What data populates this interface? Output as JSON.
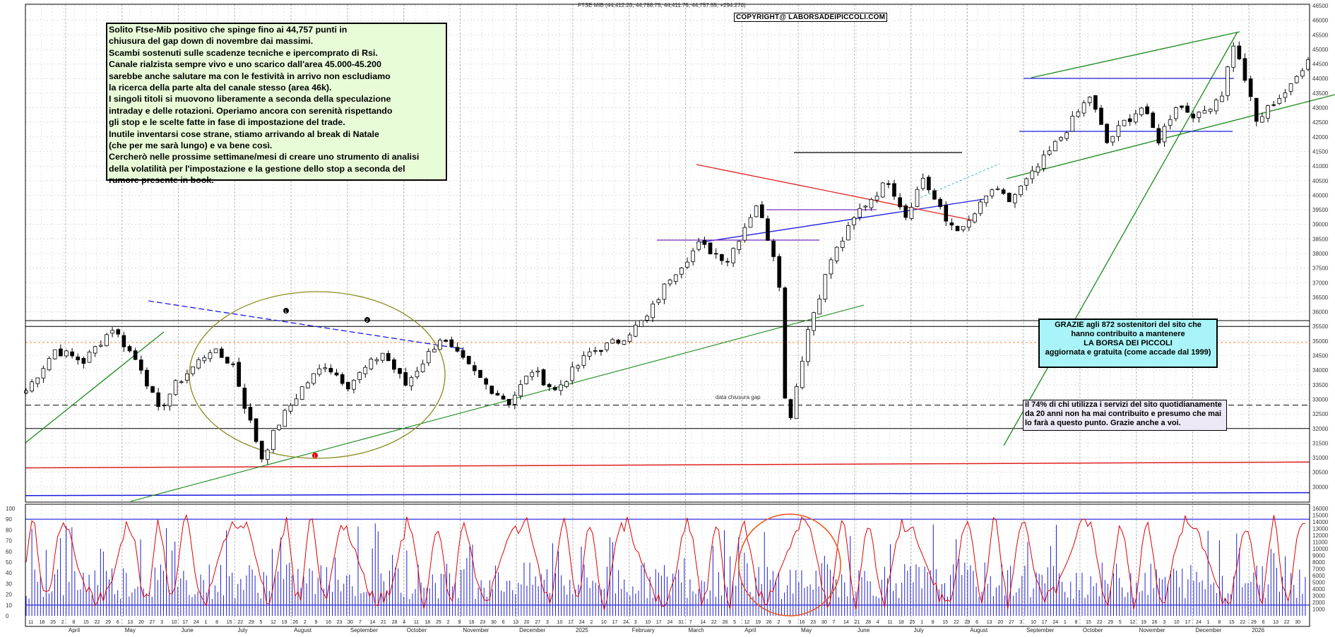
{
  "header": "FTSE MIB (44,412.23, 44,788.75, 44,411.75, 44,757.55, +294.270)",
  "copyright": "COPYRIGHT@ LABORSADEIPICCOLI.COM",
  "commentary": [
    "Solito Ftse-Mib positivo che spinge fino ai 44,757  punti in",
    "chiusura del gap down di novembre dai massimi.",
    "Scambi sostenuti sulle scadenze tecniche e ipercomprato di Rsi.",
    "Canale rialzista sempre vivo e uno scarico dall'area 45.000-45.200",
    "sarebbe anche salutare ma con le festività in arrivo  non escludiamo",
    "la ricerca della parte alta del canale stesso (area 46k).",
    "I singoli titoli si muovono liberamente a seconda della speculazione",
    "intraday e delle rotazioni. Operiamo ancora con serenità rispettando",
    "gli stop e le scelte fatte in fase di impostazione del trade.",
    "Inutile inventarsi cose strane, stiamo  arrivando al break di Natale",
    "(che per me sarà lungo) e va bene così.",
    "Cercherò nelle prossime settimane/mesi di creare uno strumento di analisi",
    "della volatilità per l'impostazione e la gestione dello stop a seconda del",
    "rumore presente in book."
  ],
  "thanks": [
    "GRAZIE  agli 872  sostenitori del sito che",
    "hanno contribuito a mantenere",
    "LA BORSA DEI PICCOLI",
    "aggiornata e gratuita (come accade dal 1999)"
  ],
  "stats": [
    "il 74%  di chi utilizza i servizi del sito quotidianamente",
    "da 20 anni non ha mai contribuito e presumo che mai",
    "lo farà a questo punto. Grazie anche a voi."
  ],
  "gap_label": "data chiusura gap",
  "colors": {
    "up": "#ffffff",
    "down": "#000000",
    "rsi": "#e00000",
    "volume": "#2020d0",
    "support": "#1a8a1a",
    "resistance": "#1a1ae0"
  },
  "chart_data": [
    {
      "type": "candlestick",
      "title": "FTSE MIB (44,412.23, 44,788.75, 44,411.75, 44,757.55, +294.270)",
      "y_axis_side": "right",
      "ylim": [
        29500,
        46500
      ],
      "yticks": [
        30000,
        30500,
        31000,
        31500,
        32000,
        32500,
        33000,
        33500,
        34000,
        34500,
        35000,
        35500,
        36000,
        36500,
        37000,
        37500,
        38000,
        38500,
        39000,
        39500,
        40000,
        40500,
        41000,
        41500,
        42000,
        42500,
        43000,
        43500,
        44000,
        44500,
        45000,
        45500,
        46000,
        46500
      ],
      "x_day_labels": [
        "11",
        "18",
        "25",
        "2",
        "8",
        "15",
        "22",
        "29",
        "6",
        "13",
        "20",
        "27",
        "3",
        "10",
        "17",
        "24",
        "1",
        "8",
        "15",
        "22",
        "29",
        "5",
        "12",
        "19",
        "26",
        "2",
        "9",
        "16",
        "23",
        "30",
        "7",
        "14",
        "21",
        "28",
        "4",
        "11",
        "18",
        "25",
        "2",
        "9",
        "16",
        "23",
        "30",
        "6",
        "13",
        "20",
        "27",
        "3",
        "10",
        "17",
        "24",
        "2",
        "10",
        "17",
        "24",
        "3",
        "10",
        "17",
        "24",
        "31",
        "7",
        "14",
        "22",
        "28",
        "5",
        "12",
        "19",
        "26",
        "2",
        "9",
        "16",
        "23",
        "30",
        "7",
        "14",
        "21",
        "28",
        "4",
        "11",
        "18",
        "25",
        "1",
        "8",
        "15",
        "22",
        "29",
        "6",
        "13",
        "20",
        "27",
        "3",
        "10",
        "17",
        "24",
        "1",
        "8",
        "15",
        "22",
        "29",
        "5",
        "12",
        "19",
        "26",
        "3",
        "10",
        "17",
        "24",
        "1",
        "8",
        "15",
        "22",
        "29",
        "6",
        "13",
        "22",
        "30"
      ],
      "x_month_labels": [
        "April",
        "May",
        "June",
        "July",
        "August",
        "September",
        "October",
        "November",
        "December",
        "2025",
        "February",
        "March",
        "April",
        "May",
        "June",
        "July",
        "August",
        "September",
        "October",
        "November",
        "December",
        "2026"
      ],
      "anchors": [
        [
          0,
          33300
        ],
        [
          5,
          34700
        ],
        [
          10,
          34300
        ],
        [
          15,
          35450
        ],
        [
          20,
          34100
        ],
        [
          23,
          32600
        ],
        [
          26,
          33500
        ],
        [
          32,
          34700
        ],
        [
          36,
          34200
        ],
        [
          38,
          32800
        ],
        [
          41,
          31000
        ],
        [
          44,
          32200
        ],
        [
          48,
          33400
        ],
        [
          52,
          34200
        ],
        [
          56,
          33500
        ],
        [
          62,
          34600
        ],
        [
          66,
          33500
        ],
        [
          72,
          35100
        ],
        [
          76,
          34300
        ],
        [
          80,
          33500
        ],
        [
          84,
          32900
        ],
        [
          88,
          34000
        ],
        [
          92,
          33300
        ],
        [
          98,
          34600
        ],
        [
          103,
          35000
        ],
        [
          108,
          35800
        ],
        [
          112,
          37200
        ],
        [
          117,
          38300
        ],
        [
          122,
          37800
        ],
        [
          127,
          39700
        ],
        [
          130,
          38000
        ],
        [
          131,
          37000
        ],
        [
          132,
          33000
        ],
        [
          133,
          32500
        ],
        [
          136,
          35400
        ],
        [
          140,
          37800
        ],
        [
          145,
          39500
        ],
        [
          150,
          40500
        ],
        [
          153,
          39300
        ],
        [
          156,
          40600
        ],
        [
          160,
          39100
        ],
        [
          163,
          38800
        ],
        [
          168,
          40200
        ],
        [
          171,
          39800
        ],
        [
          175,
          40700
        ],
        [
          180,
          42000
        ],
        [
          185,
          43400
        ],
        [
          188,
          41800
        ],
        [
          191,
          42500
        ],
        [
          194,
          43000
        ],
        [
          197,
          41900
        ],
        [
          200,
          43100
        ],
        [
          204,
          42700
        ],
        [
          208,
          43500
        ],
        [
          210,
          45200
        ],
        [
          212,
          44000
        ],
        [
          214,
          42500
        ],
        [
          217,
          43200
        ],
        [
          220,
          43700
        ],
        [
          223,
          44757
        ]
      ],
      "annotations": [
        {
          "text": "data chiusura gap"
        },
        {
          "text": "1"
        },
        {
          "text": "2"
        },
        {
          "text": "1"
        }
      ]
    },
    {
      "type": "bar+line",
      "name": "volume and RSI",
      "ylim_left": [
        0,
        100
      ],
      "yticks_left": [
        0,
        10,
        20,
        30,
        40,
        50,
        60,
        70,
        80,
        90,
        100
      ],
      "ylim_right": [
        0,
        16000
      ],
      "yticks_right": [
        1000,
        2000,
        3000,
        4000,
        5000,
        6000,
        7000,
        8000,
        9000,
        10000,
        11000,
        12000,
        13000,
        14000,
        15000,
        16000
      ],
      "reference_lines": [
        10,
        90
      ]
    }
  ]
}
